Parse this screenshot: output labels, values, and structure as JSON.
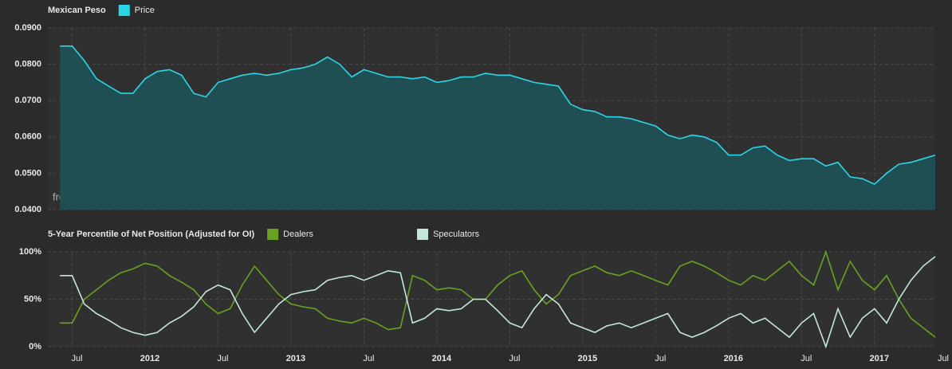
{
  "chart_data": [
    {
      "type": "area",
      "title": "Mexican Peso",
      "annotation": "freecotdata.com",
      "x": [
        "2011-06",
        "2011-07",
        "2011-08",
        "2011-09",
        "2011-10",
        "2011-11",
        "2011-12",
        "2012-01",
        "2012-02",
        "2012-03",
        "2012-04",
        "2012-05",
        "2012-06",
        "2012-07",
        "2012-08",
        "2012-09",
        "2012-10",
        "2012-11",
        "2012-12",
        "2013-01",
        "2013-02",
        "2013-03",
        "2013-04",
        "2013-05",
        "2013-06",
        "2013-07",
        "2013-08",
        "2013-09",
        "2013-10",
        "2013-11",
        "2013-12",
        "2014-01",
        "2014-02",
        "2014-03",
        "2014-04",
        "2014-05",
        "2014-06",
        "2014-07",
        "2014-08",
        "2014-09",
        "2014-10",
        "2014-11",
        "2014-12",
        "2015-01",
        "2015-02",
        "2015-03",
        "2015-04",
        "2015-05",
        "2015-06",
        "2015-07",
        "2015-08",
        "2015-09",
        "2015-10",
        "2015-11",
        "2015-12",
        "2016-01",
        "2016-02",
        "2016-03",
        "2016-04",
        "2016-05",
        "2016-06",
        "2016-07",
        "2016-08",
        "2016-09",
        "2016-10",
        "2016-11",
        "2016-12",
        "2017-01",
        "2017-02",
        "2017-03",
        "2017-04",
        "2017-05",
        "2017-06"
      ],
      "series": [
        {
          "name": "Price",
          "color": "#29d8e8",
          "fill": "#1f4f52",
          "values": [
            0.085,
            0.085,
            0.081,
            0.076,
            0.074,
            0.072,
            0.072,
            0.076,
            0.078,
            0.0785,
            0.077,
            0.072,
            0.071,
            0.075,
            0.076,
            0.077,
            0.0775,
            0.077,
            0.0775,
            0.0785,
            0.079,
            0.08,
            0.082,
            0.08,
            0.0765,
            0.0785,
            0.0775,
            0.0765,
            0.0765,
            0.076,
            0.0765,
            0.075,
            0.0755,
            0.0765,
            0.0765,
            0.0775,
            0.077,
            0.077,
            0.076,
            0.075,
            0.0745,
            0.074,
            0.069,
            0.0675,
            0.067,
            0.0655,
            0.0655,
            0.065,
            0.064,
            0.063,
            0.0605,
            0.0595,
            0.0605,
            0.06,
            0.0585,
            0.055,
            0.055,
            0.057,
            0.0575,
            0.055,
            0.0535,
            0.054,
            0.054,
            0.052,
            0.053,
            0.049,
            0.0485,
            0.047,
            0.05,
            0.0525,
            0.053,
            0.054,
            0.055
          ]
        }
      ],
      "xlim": [
        "2011-05",
        "2017-06"
      ],
      "ylim": [
        0.04,
        0.09
      ],
      "yticks": [
        {
          "value": 0.04,
          "label": "0.0400"
        },
        {
          "value": 0.05,
          "label": "0.0500"
        },
        {
          "value": 0.06,
          "label": "0.0600"
        },
        {
          "value": 0.07,
          "label": "0.0700"
        },
        {
          "value": 0.08,
          "label": "0.0800"
        },
        {
          "value": 0.09,
          "label": "0.0900"
        }
      ],
      "grid": true
    },
    {
      "type": "line",
      "title": "5-Year Percentile of Net Position (Adjusted for OI)",
      "x": [
        "2011-06",
        "2011-07",
        "2011-08",
        "2011-09",
        "2011-10",
        "2011-11",
        "2011-12",
        "2012-01",
        "2012-02",
        "2012-03",
        "2012-04",
        "2012-05",
        "2012-06",
        "2012-07",
        "2012-08",
        "2012-09",
        "2012-10",
        "2012-11",
        "2012-12",
        "2013-01",
        "2013-02",
        "2013-03",
        "2013-04",
        "2013-05",
        "2013-06",
        "2013-07",
        "2013-08",
        "2013-09",
        "2013-10",
        "2013-11",
        "2013-12",
        "2014-01",
        "2014-02",
        "2014-03",
        "2014-04",
        "2014-05",
        "2014-06",
        "2014-07",
        "2014-08",
        "2014-09",
        "2014-10",
        "2014-11",
        "2014-12",
        "2015-01",
        "2015-02",
        "2015-03",
        "2015-04",
        "2015-05",
        "2015-06",
        "2015-07",
        "2015-08",
        "2015-09",
        "2015-10",
        "2015-11",
        "2015-12",
        "2016-01",
        "2016-02",
        "2016-03",
        "2016-04",
        "2016-05",
        "2016-06",
        "2016-07",
        "2016-08",
        "2016-09",
        "2016-10",
        "2016-11",
        "2016-12",
        "2017-01",
        "2017-02",
        "2017-03",
        "2017-04",
        "2017-05",
        "2017-06"
      ],
      "series": [
        {
          "name": "Dealers",
          "color": "#6aa121",
          "values": [
            25,
            25,
            50,
            60,
            70,
            78,
            82,
            88,
            85,
            75,
            68,
            60,
            45,
            35,
            40,
            65,
            85,
            70,
            55,
            45,
            42,
            40,
            30,
            27,
            25,
            30,
            25,
            18,
            20,
            75,
            70,
            60,
            62,
            60,
            50,
            50,
            65,
            75,
            80,
            60,
            45,
            55,
            75,
            80,
            85,
            78,
            75,
            80,
            75,
            70,
            65,
            85,
            90,
            85,
            78,
            70,
            65,
            75,
            70,
            80,
            90,
            75,
            65,
            100,
            60,
            90,
            70,
            60,
            75,
            50,
            30,
            20,
            10
          ]
        },
        {
          "name": "Speculators",
          "color": "#c5e6dd",
          "values": [
            75,
            75,
            45,
            35,
            28,
            20,
            15,
            12,
            15,
            25,
            32,
            42,
            58,
            65,
            60,
            35,
            15,
            30,
            45,
            55,
            58,
            60,
            70,
            73,
            75,
            70,
            75,
            80,
            78,
            25,
            30,
            40,
            38,
            40,
            50,
            50,
            38,
            25,
            20,
            40,
            55,
            45,
            25,
            20,
            15,
            22,
            25,
            20,
            25,
            30,
            35,
            15,
            10,
            15,
            22,
            30,
            35,
            25,
            30,
            20,
            10,
            25,
            35,
            0,
            40,
            10,
            30,
            40,
            25,
            50,
            70,
            85,
            95
          ]
        }
      ],
      "xlim": [
        "2011-05",
        "2017-06"
      ],
      "xticks": [
        {
          "value": "2011-07",
          "label": "Jul"
        },
        {
          "value": "2012-01",
          "label": "2012"
        },
        {
          "value": "2012-07",
          "label": "Jul"
        },
        {
          "value": "2013-01",
          "label": "2013"
        },
        {
          "value": "2013-07",
          "label": "Jul"
        },
        {
          "value": "2014-01",
          "label": "2014"
        },
        {
          "value": "2014-07",
          "label": "Jul"
        },
        {
          "value": "2015-01",
          "label": "2015"
        },
        {
          "value": "2015-07",
          "label": "Jul"
        },
        {
          "value": "2016-01",
          "label": "2016"
        },
        {
          "value": "2016-07",
          "label": "Jul"
        },
        {
          "value": "2017-01",
          "label": "2017"
        },
        {
          "value": "2017-07",
          "label": "Jul"
        }
      ],
      "ylim": [
        0,
        100
      ],
      "yticks": [
        {
          "value": 0,
          "label": "0%"
        },
        {
          "value": 50,
          "label": "50%"
        },
        {
          "value": 100,
          "label": "100%"
        }
      ],
      "grid": true
    }
  ]
}
